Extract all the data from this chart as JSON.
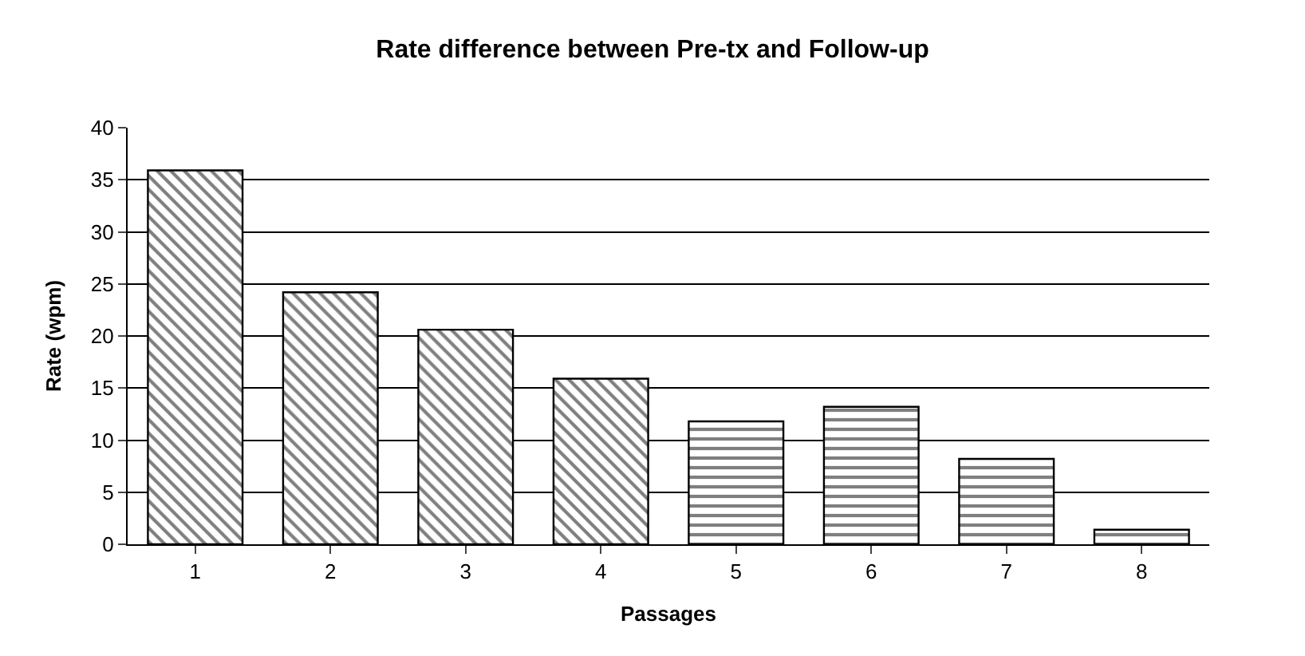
{
  "chart_data": {
    "type": "bar",
    "title": "Rate difference between Pre-tx and Follow-up",
    "xlabel": "Passages",
    "ylabel": "Rate (wpm)",
    "categories": [
      "1",
      "2",
      "3",
      "4",
      "5",
      "6",
      "7",
      "8"
    ],
    "series": [
      {
        "color": "#000000",
        "values": [
          35.9,
          24.2,
          20.6,
          15.9,
          null,
          null,
          null,
          null
        ]
      },
      {
        "color": "#000000",
        "values": [
          null,
          null,
          null,
          null,
          11.8,
          13.2,
          8.2,
          1.4
        ]
      }
    ],
    "ylim": [
      0,
      40
    ],
    "yticks": [
      0,
      5,
      10,
      15,
      20,
      25,
      30,
      35,
      40
    ],
    "grid": "y",
    "legend": false
  }
}
